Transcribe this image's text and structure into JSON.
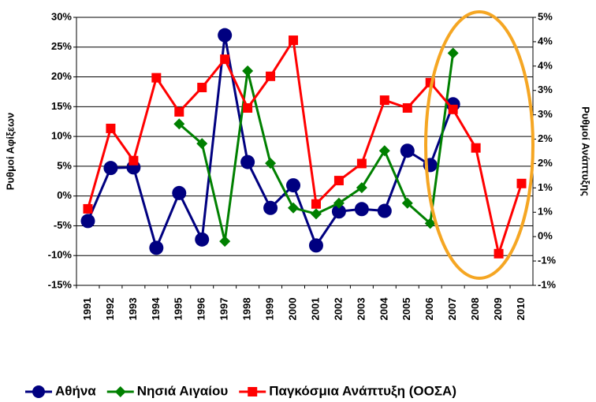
{
  "chart_data": {
    "type": "line",
    "y_label": "Ρυθμοί Αφίξεων",
    "y2_label": "Ρυθμοί Ανάπτυξης",
    "categories": [
      "1991",
      "1992",
      "1993",
      "1994",
      "1995",
      "1996",
      "1997",
      "1998",
      "1999",
      "2000",
      "2001",
      "2002",
      "2003",
      "2004",
      "2005",
      "2006",
      "2007",
      "2008",
      "2009",
      "2010"
    ],
    "ylim": [
      -15,
      30
    ],
    "yticks": [
      {
        "value": -15,
        "label": "-15%"
      },
      {
        "value": -10,
        "label": "-10%"
      },
      {
        "value": -5,
        "label": "-5%"
      },
      {
        "value": 0,
        "label": "0%"
      },
      {
        "value": 5,
        "label": "5%"
      },
      {
        "value": 10,
        "label": "10%"
      },
      {
        "value": 15,
        "label": "15%"
      },
      {
        "value": 20,
        "label": "20%"
      },
      {
        "value": 25,
        "label": "25%"
      },
      {
        "value": 30,
        "label": "30%"
      }
    ],
    "y2lim": [
      -1,
      4.5
    ],
    "y2ticks": [
      {
        "value": -1,
        "label": "-1%"
      },
      {
        "value": -0.5,
        "label": "-1%"
      },
      {
        "value": 0,
        "label": "0%"
      },
      {
        "value": 0.5,
        "label": "1%"
      },
      {
        "value": 1,
        "label": "1%"
      },
      {
        "value": 1.5,
        "label": "2%"
      },
      {
        "value": 2,
        "label": "2%"
      },
      {
        "value": 2.5,
        "label": "3%"
      },
      {
        "value": 3,
        "label": "3%"
      },
      {
        "value": 3.5,
        "label": "4%"
      },
      {
        "value": 4,
        "label": "4%"
      },
      {
        "value": 4.5,
        "label": "5%"
      }
    ],
    "grid": true,
    "legend": "bottom",
    "series": [
      {
        "name": "Αθήνα",
        "color": "#000080",
        "marker": "circle",
        "values": [
          -4.2,
          4.7,
          4.8,
          -8.7,
          0.5,
          -7.3,
          27,
          5.7,
          -2,
          1.8,
          -8.3,
          -2.6,
          -2.2,
          -2.5,
          7.6,
          5.2,
          15.4,
          null,
          null,
          null
        ]
      },
      {
        "name": "Νησιά Αιγαίου",
        "color": "#008000",
        "marker": "diamond",
        "values": [
          null,
          null,
          null,
          null,
          12.1,
          8.8,
          -7.6,
          21,
          5.5,
          -2,
          -3,
          -1.2,
          1.4,
          7.6,
          -1.2,
          -4.6,
          24,
          null,
          null,
          null
        ]
      },
      {
        "name": "Παγκόσμια Ανάπτυξη (ΟΟΣΑ)",
        "color": "#ff0000",
        "marker": "square",
        "axis": "y2",
        "values": [
          0.57,
          2.22,
          1.56,
          3.26,
          2.56,
          3.06,
          3.64,
          2.64,
          3.29,
          4.03,
          0.67,
          1.15,
          1.5,
          2.8,
          2.64,
          3.16,
          2.61,
          1.82,
          -0.35,
          1.09
        ]
      }
    ]
  }
}
